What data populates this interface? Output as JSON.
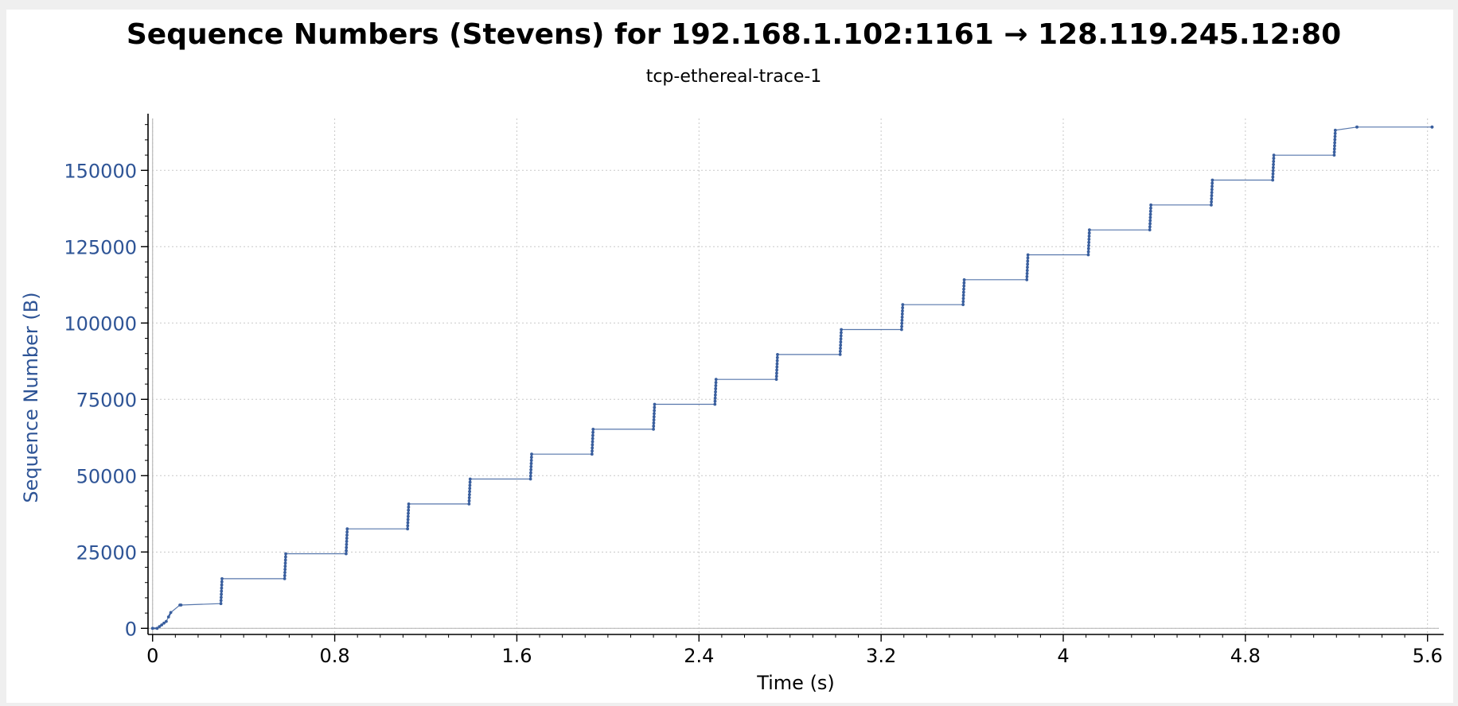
{
  "chart_data": {
    "type": "line",
    "title": "Sequence Numbers (Stevens) for 192.168.1.102:1161 → 128.119.245.12:80",
    "subtitle": "tcp-ethereal-trace-1",
    "xlabel": "Time (s)",
    "ylabel": "Sequence Number (B)",
    "xlim": [
      -0.02,
      5.65
    ],
    "ylim": [
      -2000,
      167000
    ],
    "x_ticks": [
      0,
      0.8,
      1.6,
      2.4,
      3.2,
      4,
      4.8,
      5.6
    ],
    "x_tick_labels": [
      "0",
      "0.8",
      "1.6",
      "2.4",
      "3.2",
      "4",
      "4.8",
      "5.6"
    ],
    "y_ticks": [
      0,
      25000,
      50000,
      75000,
      100000,
      125000,
      150000
    ],
    "y_tick_labels": [
      "0",
      "25000",
      "50000",
      "75000",
      "100000",
      "125000",
      "150000"
    ],
    "grid": true,
    "colors": {
      "series": "#3a5f9e",
      "axis_label": "#2e5496",
      "title": "#000000",
      "grid": "#c8c8c8"
    },
    "segments": [
      {
        "start": 0.0,
        "end": 0.02,
        "y0": 1,
        "y1": 1
      },
      {
        "start": 0.03,
        "end": 0.04,
        "y0": 566,
        "y1": 1132
      },
      {
        "start": 0.05,
        "end": 0.06,
        "y0": 1697,
        "y1": 2263
      },
      {
        "start": 0.07,
        "end": 0.08,
        "y0": 3720,
        "y1": 5180
      },
      {
        "start": 0.12,
        "end": 0.125,
        "y0": 7640,
        "y1": 7640
      },
      {
        "start": 0.3,
        "end": 0.305,
        "y0": 8100,
        "y1": 16260
      },
      {
        "start": 0.58,
        "end": 0.585,
        "y0": 16260,
        "y1": 24420
      },
      {
        "start": 0.85,
        "end": 0.855,
        "y0": 24420,
        "y1": 32580
      },
      {
        "start": 1.12,
        "end": 1.125,
        "y0": 32580,
        "y1": 40740
      },
      {
        "start": 1.39,
        "end": 1.395,
        "y0": 40740,
        "y1": 48900
      },
      {
        "start": 1.66,
        "end": 1.665,
        "y0": 48900,
        "y1": 57060
      },
      {
        "start": 1.93,
        "end": 1.935,
        "y0": 57060,
        "y1": 65220
      },
      {
        "start": 2.2,
        "end": 2.205,
        "y0": 65220,
        "y1": 73380
      },
      {
        "start": 2.47,
        "end": 2.475,
        "y0": 73380,
        "y1": 81540
      },
      {
        "start": 2.74,
        "end": 2.745,
        "y0": 81540,
        "y1": 89700
      },
      {
        "start": 3.02,
        "end": 3.025,
        "y0": 89700,
        "y1": 97860
      },
      {
        "start": 3.29,
        "end": 3.295,
        "y0": 97860,
        "y1": 106020
      },
      {
        "start": 3.56,
        "end": 3.565,
        "y0": 106020,
        "y1": 114180
      },
      {
        "start": 3.84,
        "end": 3.845,
        "y0": 114180,
        "y1": 122340
      },
      {
        "start": 4.11,
        "end": 4.115,
        "y0": 122340,
        "y1": 130500
      },
      {
        "start": 4.38,
        "end": 4.385,
        "y0": 130500,
        "y1": 138660
      },
      {
        "start": 4.65,
        "end": 4.655,
        "y0": 138660,
        "y1": 146820
      },
      {
        "start": 4.92,
        "end": 4.925,
        "y0": 146820,
        "y1": 154980
      },
      {
        "start": 5.19,
        "end": 5.195,
        "y0": 154980,
        "y1": 163140
      },
      {
        "start": 5.29,
        "end": 5.29,
        "y0": 164190,
        "y1": 164190
      },
      {
        "start": 5.62,
        "end": 5.62,
        "y0": 164190,
        "y1": 164190
      }
    ]
  }
}
